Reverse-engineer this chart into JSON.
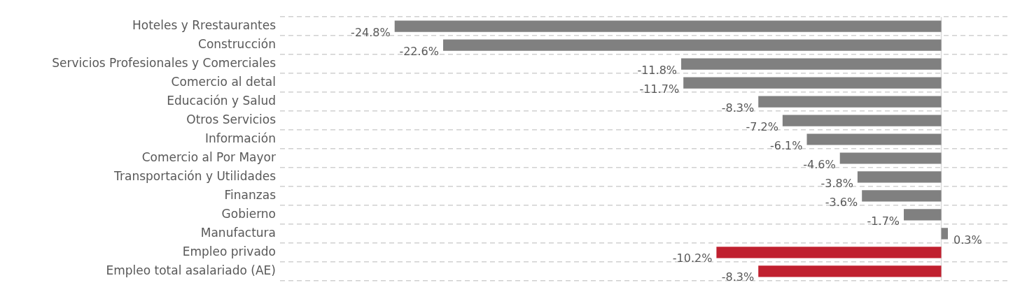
{
  "chart_data": {
    "type": "bar",
    "orientation": "horizontal",
    "categories": [
      "Hoteles y Rrestaurantes",
      "Construcción",
      "Servicios Profesionales y Comerciales",
      "Comercio al detal",
      "Educación y Salud",
      "Otros Servicios",
      "Información",
      "Comercio al Por Mayor",
      "Transportación y Utilidades",
      "Finanzas",
      "Gobierno",
      "Manufactura",
      "Empleo privado",
      "Empleo total asalariado (AE)"
    ],
    "values": [
      -24.8,
      -22.6,
      -11.8,
      -11.7,
      -8.3,
      -7.2,
      -6.1,
      -4.6,
      -3.8,
      -3.6,
      -1.7,
      0.3,
      -10.2,
      -8.3
    ],
    "colors": [
      "#808080",
      "#808080",
      "#808080",
      "#808080",
      "#808080",
      "#808080",
      "#808080",
      "#808080",
      "#808080",
      "#808080",
      "#808080",
      "#808080",
      "#c0202f",
      "#c0202f"
    ],
    "value_labels": [
      "-24.8%",
      "-22.6%",
      "-11.8%",
      "-11.7%",
      "-8.3%",
      "-7.2%",
      "-6.1%",
      "-4.6%",
      "-3.8%",
      "-3.6%",
      "-1.7%",
      "0.3%",
      "-10.2%",
      "-8.3%"
    ],
    "xlim": [
      -30,
      3
    ],
    "grid": "y",
    "tick_labels": "y",
    "ref_lines": [
      {
        "axis": "x",
        "value": 0,
        "color": "#d9d9d9"
      }
    ],
    "legend": false
  }
}
